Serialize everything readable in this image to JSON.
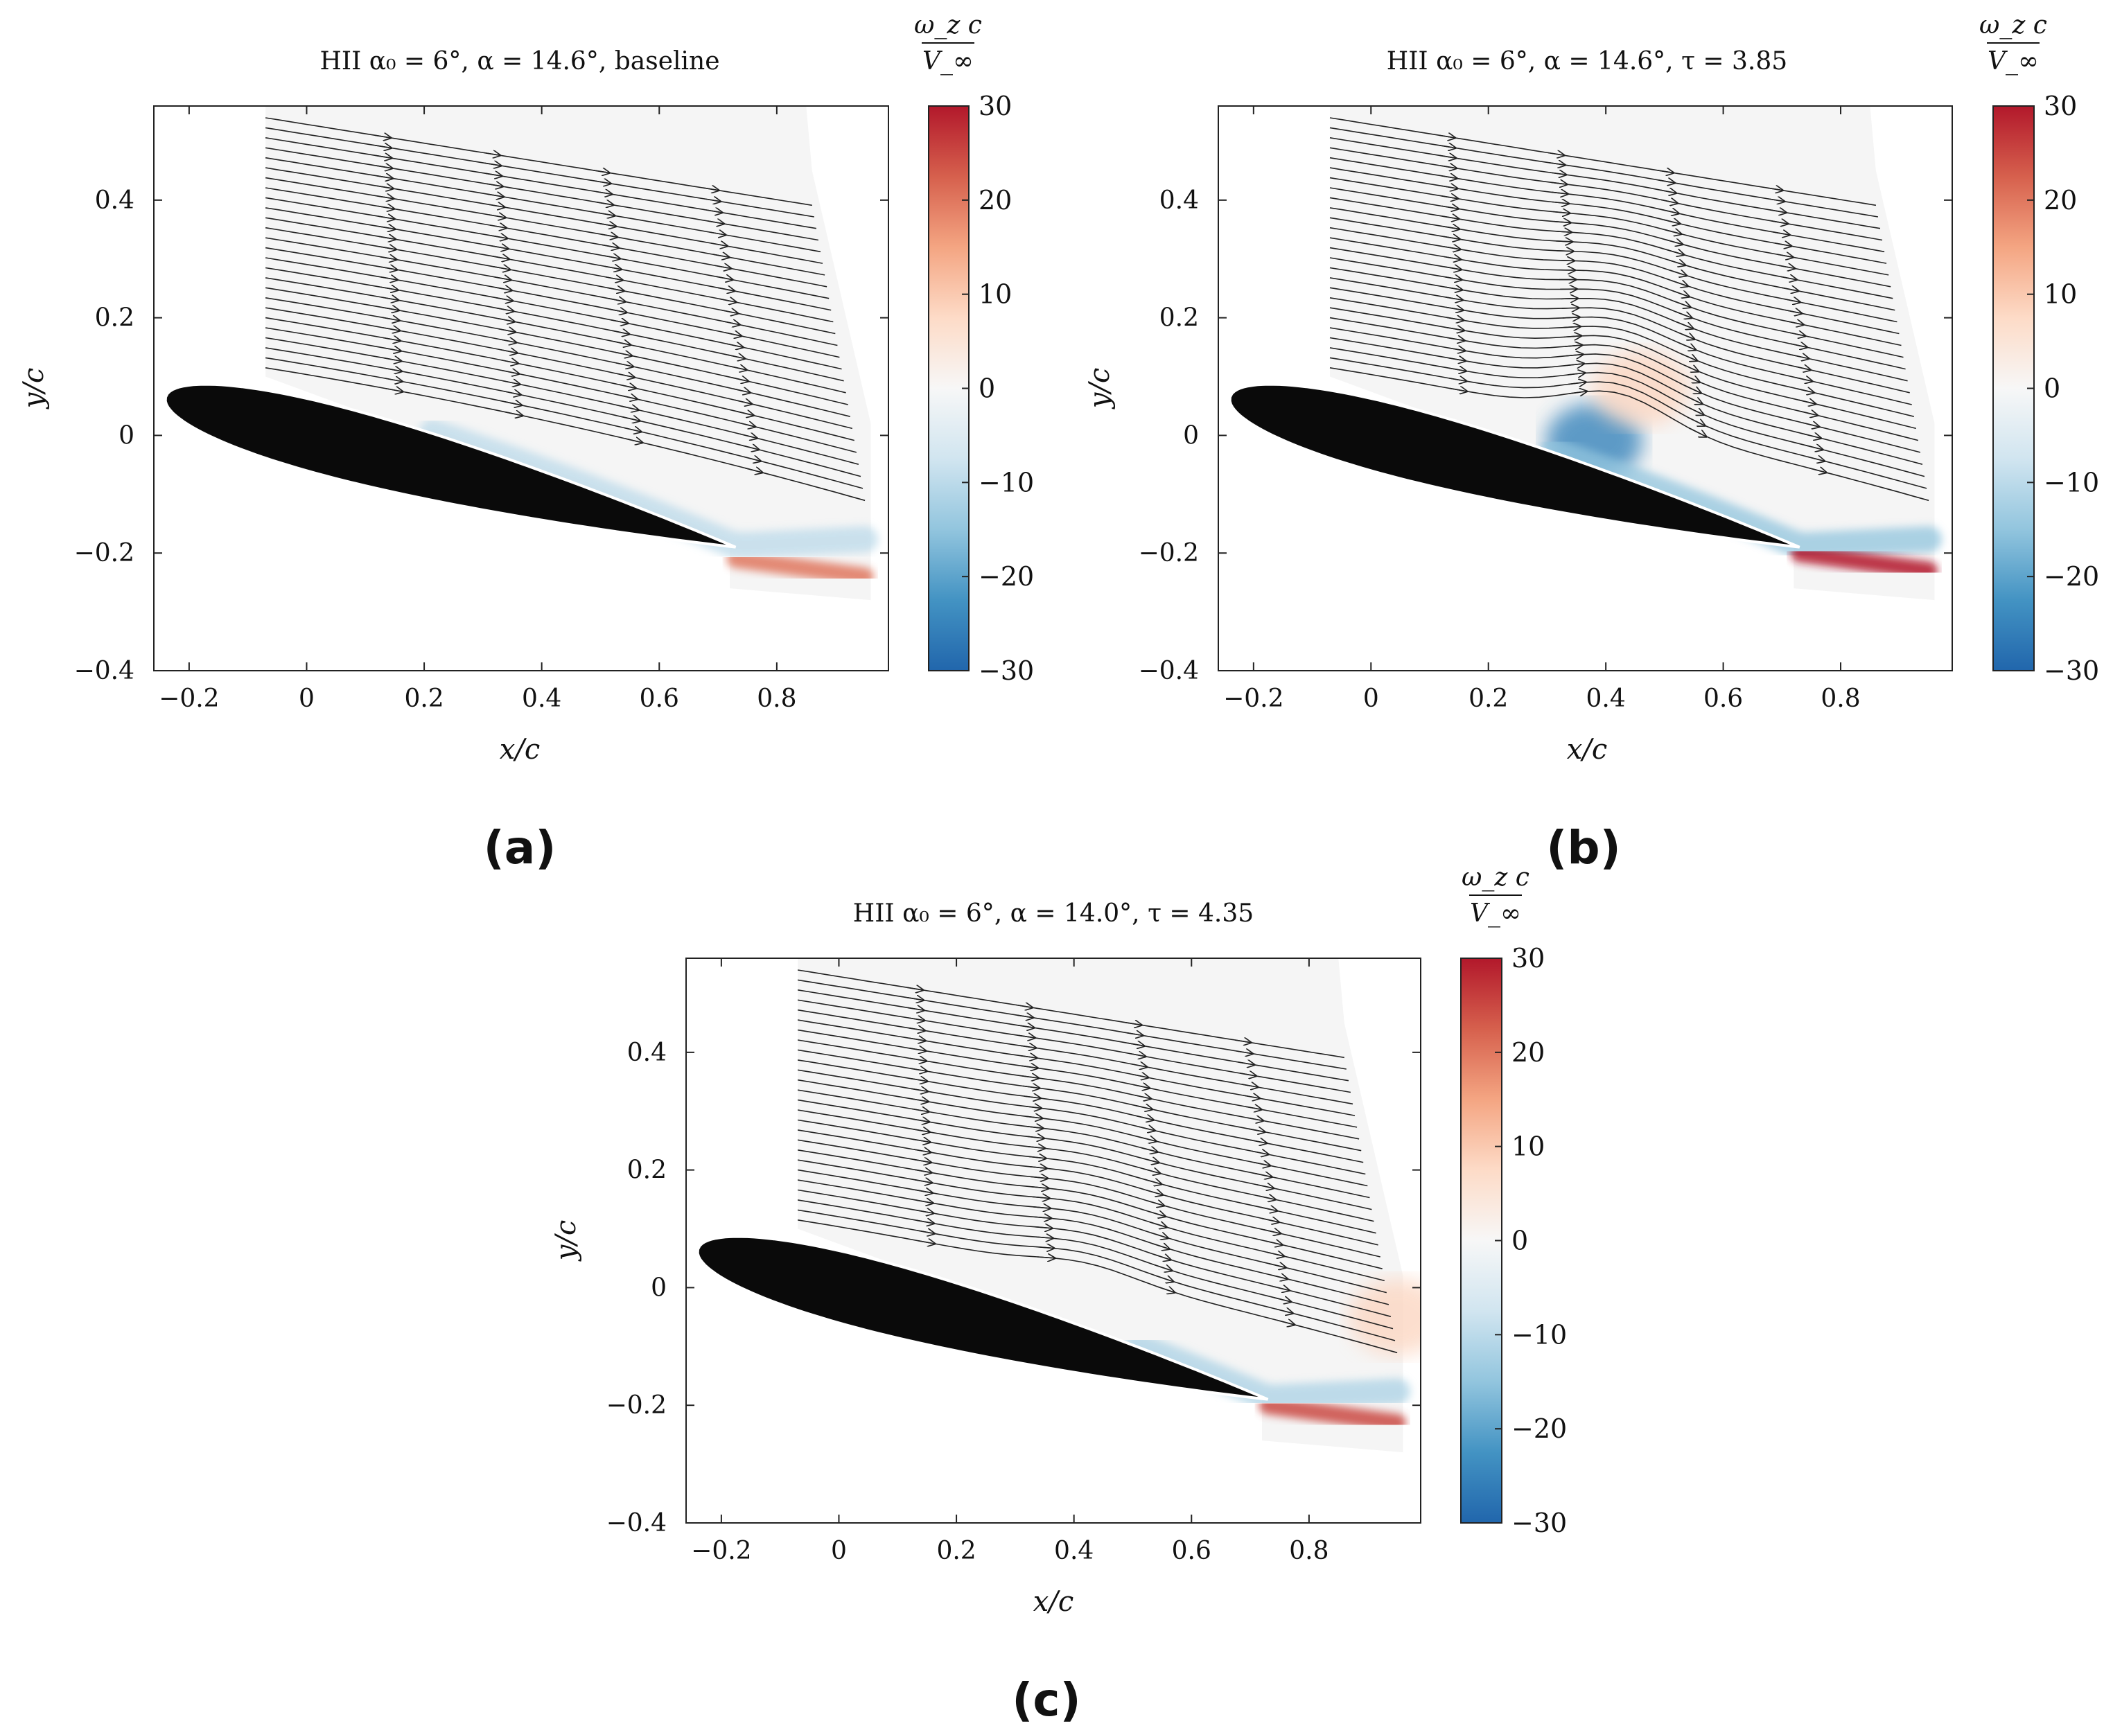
{
  "figure_labels": [
    "(a)",
    "(b)",
    "(c)"
  ],
  "colorbar": {
    "label_num": "ω_z c",
    "label_den": "V_∞",
    "ticks": [
      30,
      20,
      10,
      0,
      -10,
      -20,
      -30
    ],
    "tick_labels": [
      "30",
      "20",
      "10",
      "0",
      "−10",
      "−20",
      "−30"
    ],
    "colors": [
      "#b2182b",
      "#d6604d",
      "#f4a582",
      "#fddbc7",
      "#f7f7f7",
      "#d1e5f0",
      "#92c5de",
      "#4393c3",
      "#2166ac"
    ]
  },
  "chart_data": [
    {
      "type": "contour",
      "title": "HII α₀ = 6°, α = 14.6°, baseline",
      "xlabel": "x/c",
      "ylabel": "y/c",
      "xlim": [
        -0.26,
        0.99
      ],
      "ylim": [
        -0.4,
        0.56
      ],
      "xticks": [
        -0.2,
        0,
        0.2,
        0.4,
        0.6,
        0.8
      ],
      "xtick_labels": [
        "−0.2",
        "0",
        "0.2",
        "0.4",
        "0.6",
        "0.8"
      ],
      "yticks": [
        -0.4,
        -0.2,
        0,
        0.2,
        0.4
      ],
      "ytick_labels": [
        "−0.4",
        "−0.2",
        "0",
        "0.2",
        "0.4"
      ],
      "clim": [
        -30,
        30
      ],
      "alpha_deg": 14.6,
      "airfoil": {
        "le": [
          -0.24,
          0.065
        ],
        "te": [
          0.73,
          -0.19
        ],
        "thickness": 0.12
      },
      "streamline_bend": 0.0,
      "vorticity_features": [
        {
          "kind": "shear_layer",
          "x": [
            0.2,
            0.95
          ],
          "value": -10
        },
        {
          "kind": "wake",
          "x": [
            0.73,
            0.95
          ],
          "y": -0.21,
          "value": 20
        }
      ]
    },
    {
      "type": "contour",
      "title": "HII α₀ = 6°, α = 14.6°, τ = 3.85",
      "xlabel": "x/c",
      "ylabel": "y/c",
      "xlim": [
        -0.26,
        0.99
      ],
      "ylim": [
        -0.4,
        0.56
      ],
      "xticks": [
        -0.2,
        0,
        0.2,
        0.4,
        0.6,
        0.8
      ],
      "xtick_labels": [
        "−0.2",
        "0",
        "0.2",
        "0.4",
        "0.6",
        "0.8"
      ],
      "yticks": [
        -0.4,
        -0.2,
        0,
        0.2,
        0.4
      ],
      "ytick_labels": [
        "−0.4",
        "−0.2",
        "0",
        "0.2",
        "0.4"
      ],
      "clim": [
        -30,
        30
      ],
      "alpha_deg": 14.6,
      "airfoil": {
        "le": [
          -0.24,
          0.065
        ],
        "te": [
          0.73,
          -0.19
        ],
        "thickness": 0.12
      },
      "streamline_bend": 0.05,
      "vorticity_features": [
        {
          "kind": "vortex",
          "x": 0.38,
          "y": -0.01,
          "value": -25
        },
        {
          "kind": "vortex",
          "x": 0.46,
          "y": 0.08,
          "value": 8
        },
        {
          "kind": "shear_layer",
          "x": [
            0.3,
            0.95
          ],
          "value": -15
        },
        {
          "kind": "wake",
          "x": [
            0.73,
            0.95
          ],
          "y": -0.2,
          "value": 30
        }
      ]
    },
    {
      "type": "contour",
      "title": "HII α₀ = 6°, α = 14.0°, τ = 4.35",
      "xlabel": "x/c",
      "ylabel": "y/c",
      "xlim": [
        -0.26,
        0.99
      ],
      "ylim": [
        -0.4,
        0.56
      ],
      "xticks": [
        -0.2,
        0,
        0.2,
        0.4,
        0.6,
        0.8
      ],
      "xtick_labels": [
        "−0.2",
        "0",
        "0.2",
        "0.4",
        "0.6",
        "0.8"
      ],
      "yticks": [
        -0.4,
        -0.2,
        0,
        0.2,
        0.4
      ],
      "ytick_labels": [
        "−0.4",
        "−0.2",
        "0",
        "0.2",
        "0.4"
      ],
      "clim": [
        -30,
        30
      ],
      "alpha_deg": 14.0,
      "airfoil": {
        "le": [
          -0.24,
          0.065
        ],
        "te": [
          0.73,
          -0.19
        ],
        "thickness": 0.12
      },
      "streamline_bend": 0.02,
      "vorticity_features": [
        {
          "kind": "shear_layer",
          "x": [
            0.5,
            0.95
          ],
          "value": -12
        },
        {
          "kind": "vortex",
          "x": 0.95,
          "y": -0.05,
          "value": 8
        },
        {
          "kind": "wake",
          "x": [
            0.73,
            0.95
          ],
          "y": -0.2,
          "value": 25
        }
      ]
    }
  ]
}
